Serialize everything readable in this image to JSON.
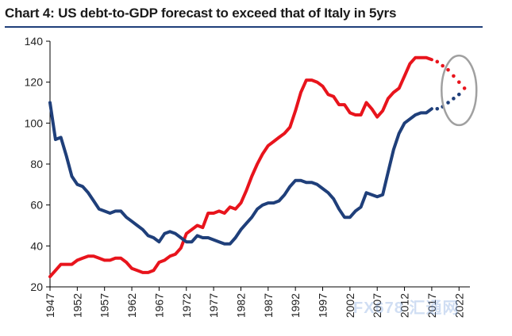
{
  "chart_data": {
    "type": "line",
    "title": "Chart 4: US debt-to-GDP forecast to exceed that of Italy in 5yrs",
    "xlabel": "",
    "ylabel": "",
    "xlim": [
      1947,
      2024
    ],
    "ylim": [
      20,
      140
    ],
    "yticks": [
      20,
      40,
      60,
      80,
      100,
      120,
      140
    ],
    "xticks": [
      1947,
      1952,
      1957,
      1962,
      1967,
      1972,
      1977,
      1982,
      1987,
      1992,
      1997,
      2002,
      2007,
      2012,
      2017,
      2022
    ],
    "grid": false,
    "legend": "none",
    "series": [
      {
        "color": "#e8141c",
        "x": [
          1947,
          1948,
          1949,
          1950,
          1951,
          1952,
          1953,
          1954,
          1955,
          1956,
          1957,
          1958,
          1959,
          1960,
          1961,
          1962,
          1963,
          1964,
          1965,
          1966,
          1967,
          1968,
          1969,
          1970,
          1971,
          1972,
          1973,
          1974,
          1975,
          1976,
          1977,
          1978,
          1979,
          1980,
          1981,
          1982,
          1983,
          1984,
          1985,
          1986,
          1987,
          1988,
          1989,
          1990,
          1991,
          1992,
          1993,
          1994,
          1995,
          1996,
          1997,
          1998,
          1999,
          2000,
          2001,
          2002,
          2003,
          2004,
          2005,
          2006,
          2007,
          2008,
          2009,
          2010,
          2011,
          2012,
          2013,
          2014,
          2015,
          2016,
          2017
        ],
        "y": [
          25,
          28,
          31,
          31,
          31,
          33,
          34,
          35,
          35,
          34,
          33,
          33,
          34,
          34,
          32,
          29,
          28,
          27,
          27,
          28,
          32,
          33,
          35,
          36,
          39,
          46,
          48,
          50,
          49,
          56,
          56,
          57,
          56,
          59,
          58,
          61,
          67,
          74,
          80,
          85,
          89,
          91,
          93,
          95,
          98,
          106,
          115,
          121,
          121,
          120,
          118,
          114,
          113,
          109,
          109,
          105,
          104,
          104,
          110,
          107,
          103,
          106,
          112,
          115,
          117,
          123,
          129,
          132,
          132,
          132,
          131
        ]
      },
      {
        "color": "#e8141c",
        "dotted": true,
        "x": [
          2018,
          2019,
          2020,
          2021,
          2022,
          2023
        ],
        "y": [
          130,
          128,
          126,
          123,
          120,
          117
        ]
      },
      {
        "color": "#1f3f7a",
        "x": [
          1947,
          1948,
          1949,
          1950,
          1951,
          1952,
          1953,
          1954,
          1955,
          1956,
          1957,
          1958,
          1959,
          1960,
          1961,
          1962,
          1963,
          1964,
          1965,
          1966,
          1967,
          1968,
          1969,
          1970,
          1971,
          1972,
          1973,
          1974,
          1975,
          1976,
          1977,
          1978,
          1979,
          1980,
          1981,
          1982,
          1983,
          1984,
          1985,
          1986,
          1987,
          1988,
          1989,
          1990,
          1991,
          1992,
          1993,
          1994,
          1995,
          1996,
          1997,
          1998,
          1999,
          2000,
          2001,
          2002,
          2003,
          2004,
          2005,
          2006,
          2007,
          2008,
          2009,
          2010,
          2011,
          2012,
          2013,
          2014,
          2015,
          2016,
          2017
        ],
        "y": [
          110,
          92,
          93,
          84,
          74,
          70,
          69,
          66,
          62,
          58,
          57,
          56,
          57,
          57,
          54,
          52,
          50,
          48,
          45,
          44,
          42,
          46,
          47,
          46,
          44,
          42,
          42,
          45,
          44,
          44,
          43,
          42,
          41,
          41,
          44,
          48,
          51,
          54,
          58,
          60,
          61,
          61,
          62,
          65,
          69,
          72,
          72,
          71,
          71,
          70,
          68,
          66,
          63,
          58,
          54,
          54,
          57,
          59,
          66,
          65,
          64,
          65,
          76,
          87,
          95,
          100,
          102,
          104,
          105,
          105,
          107
        ]
      },
      {
        "color": "#1f3f7a",
        "dotted": true,
        "x": [
          2018,
          2019,
          2020,
          2021,
          2022
        ],
        "y": [
          107,
          108,
          110,
          112,
          114
        ]
      }
    ],
    "annotation": {
      "shape": "ellipse",
      "stroke": "#a0a0a0",
      "center": [
        2022,
        116
      ],
      "half_width": 3.2,
      "half_height": 17
    }
  },
  "watermark": "FX678 汇通网"
}
